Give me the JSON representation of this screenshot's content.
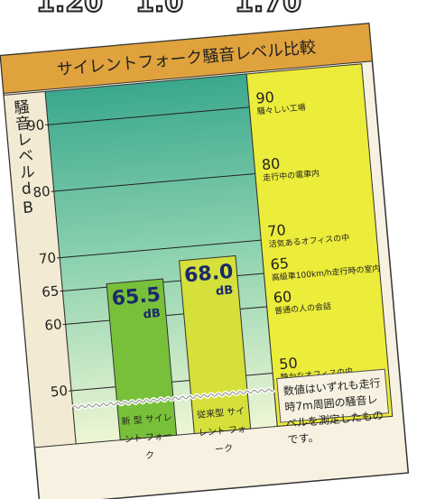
{
  "top_fragments": [
    "1.20",
    "1.0",
    "1.70"
  ],
  "chart_data": {
    "type": "bar",
    "title": "サイレントフォーク騒音レベル比較",
    "y_label": "騒音レベルdB",
    "categories": [
      "新 型 サイレント フォーク",
      "従来型 サイレント フォーク"
    ],
    "values": [
      65.5,
      68.0
    ],
    "value_labels": [
      "65.5",
      "68.0"
    ],
    "value_unit": "dB",
    "colors": [
      "#78c03a",
      "#d6e03a"
    ],
    "ylim": [
      42,
      95
    ],
    "yticks": [
      50,
      60,
      65,
      70,
      80,
      90
    ],
    "grid": true,
    "axis_break": true,
    "references": [
      {
        "value": 90,
        "label": "騒々しい工場"
      },
      {
        "value": 80,
        "label": "走行中の電車内"
      },
      {
        "value": 70,
        "label": "活気あるオフィスの中"
      },
      {
        "value": 65,
        "label": "高級車100km/h走行時の室内"
      },
      {
        "value": 60,
        "label": "普通の人の会話"
      },
      {
        "value": 50,
        "label": "静かなオフィスの中"
      }
    ],
    "note": "数値はいずれも走行時7m周囲の騒音レベルを測定したものです。"
  }
}
